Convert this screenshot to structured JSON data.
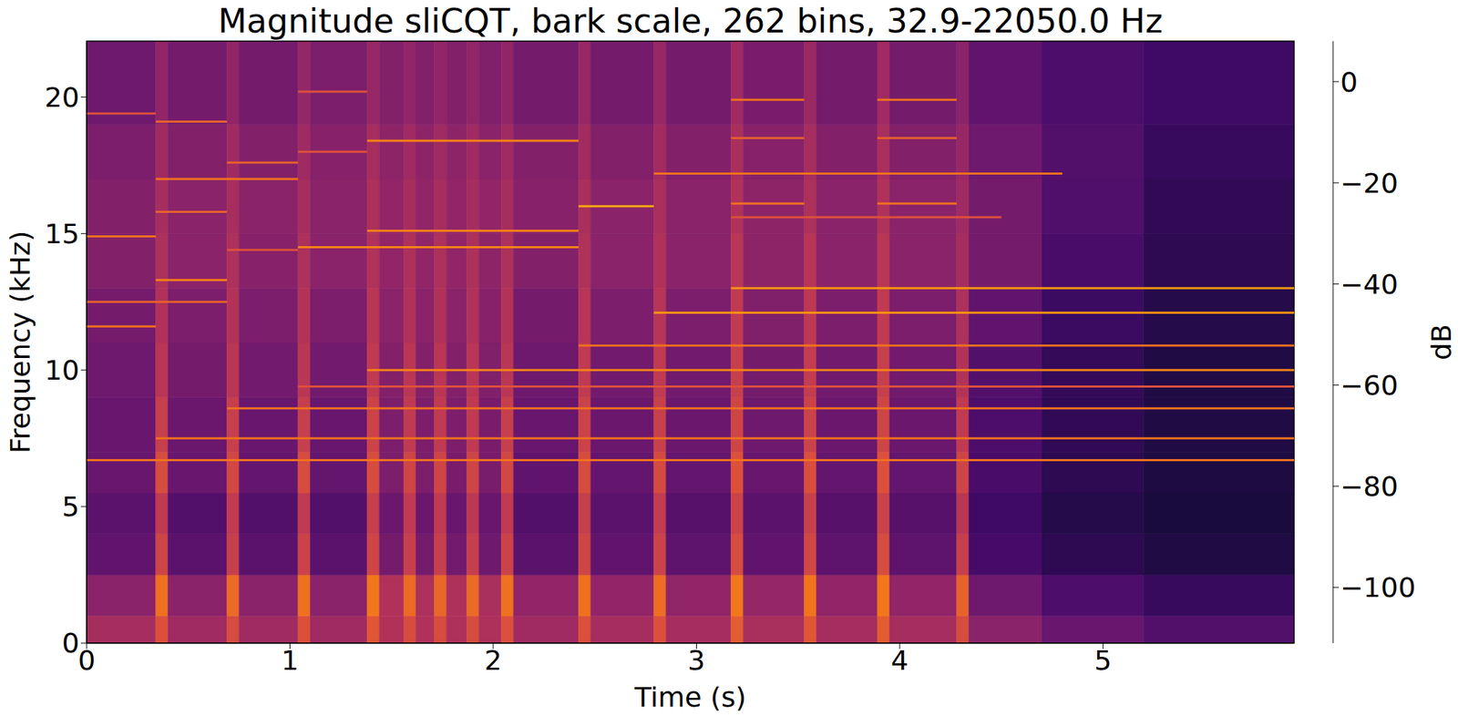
{
  "chart_data": {
    "type": "heatmap",
    "title": "Magnitude sliCQT, bark scale, 262 bins, 32.9-22050.0 Hz",
    "x_label": "Time (s)",
    "y_label": "Frequency (kHz)",
    "xlim": [
      0,
      5.94
    ],
    "ylim": [
      0,
      22.05
    ],
    "xticks": [
      0,
      1,
      2,
      3,
      4,
      5
    ],
    "yticks": [
      0,
      5,
      10,
      15,
      20
    ],
    "x_edges": [
      0,
      0.34,
      0.4,
      0.69,
      0.75,
      1.04,
      1.1,
      1.38,
      1.44,
      1.56,
      1.62,
      1.71,
      1.77,
      1.87,
      1.93,
      2.04,
      2.1,
      2.42,
      2.48,
      2.79,
      2.85,
      3.17,
      3.23,
      3.53,
      3.59,
      3.89,
      3.95,
      4.28,
      4.34,
      4.7,
      5.2,
      5.94
    ],
    "y_edges": [
      0,
      1,
      2.5,
      4,
      5.5,
      7,
      9,
      11,
      13,
      15,
      17,
      19,
      22.05
    ],
    "cells": [
      [
        -58,
        -66,
        -78,
        -80,
        -76,
        -76,
        -74,
        -72,
        -68,
        -68,
        -70,
        -74
      ],
      [
        -40,
        -30,
        -45,
        -50,
        -42,
        -48,
        -52,
        -55,
        -56,
        -58,
        -60,
        -64
      ],
      [
        -60,
        -66,
        -80,
        -82,
        -76,
        -75,
        -72,
        -70,
        -66,
        -66,
        -68,
        -72
      ],
      [
        -42,
        -32,
        -48,
        -50,
        -44,
        -48,
        -52,
        -54,
        -56,
        -58,
        -60,
        -64
      ],
      [
        -60,
        -66,
        -80,
        -82,
        -77,
        -76,
        -73,
        -70,
        -67,
        -66,
        -68,
        -72
      ],
      [
        -40,
        -30,
        -46,
        -50,
        -42,
        -48,
        -52,
        -54,
        -56,
        -58,
        -60,
        -63
      ],
      [
        -60,
        -66,
        -80,
        -82,
        -77,
        -76,
        -73,
        -70,
        -66,
        -66,
        -67,
        -70
      ],
      [
        -38,
        -28,
        -45,
        -48,
        -42,
        -46,
        -50,
        -52,
        -55,
        -56,
        -58,
        -62
      ],
      [
        -55,
        -55,
        -72,
        -75,
        -70,
        -70,
        -68,
        -66,
        -64,
        -64,
        -65,
        -68
      ],
      [
        -42,
        -32,
        -48,
        -50,
        -45,
        -50,
        -52,
        -55,
        -56,
        -58,
        -60,
        -64
      ],
      [
        -55,
        -56,
        -72,
        -75,
        -70,
        -70,
        -68,
        -66,
        -64,
        -64,
        -65,
        -68
      ],
      [
        -42,
        -33,
        -48,
        -50,
        -45,
        -50,
        -52,
        -55,
        -56,
        -58,
        -60,
        -64
      ],
      [
        -56,
        -56,
        -73,
        -76,
        -71,
        -70,
        -68,
        -66,
        -64,
        -64,
        -65,
        -68
      ],
      [
        -42,
        -32,
        -48,
        -51,
        -45,
        -50,
        -52,
        -55,
        -56,
        -58,
        -60,
        -64
      ],
      [
        -56,
        -57,
        -74,
        -76,
        -71,
        -71,
        -69,
        -67,
        -65,
        -64,
        -66,
        -69
      ],
      [
        -40,
        -30,
        -46,
        -50,
        -44,
        -48,
        -52,
        -54,
        -56,
        -58,
        -60,
        -64
      ],
      [
        -60,
        -64,
        -80,
        -82,
        -78,
        -76,
        -74,
        -72,
        -68,
        -67,
        -68,
        -72
      ],
      [
        -40,
        -30,
        -45,
        -48,
        -42,
        -46,
        -50,
        -53,
        -55,
        -57,
        -59,
        -62
      ],
      [
        -58,
        -64,
        -78,
        -80,
        -77,
        -75,
        -73,
        -70,
        -66,
        -66,
        -68,
        -72
      ],
      [
        -40,
        -31,
        -46,
        -49,
        -43,
        -47,
        -50,
        -53,
        -55,
        -57,
        -59,
        -62
      ],
      [
        -58,
        -64,
        -79,
        -81,
        -77,
        -75,
        -73,
        -70,
        -66,
        -66,
        -68,
        -72
      ],
      [
        -36,
        -28,
        -42,
        -46,
        -40,
        -45,
        -48,
        -50,
        -52,
        -55,
        -57,
        -60
      ],
      [
        -57,
        -63,
        -78,
        -80,
        -76,
        -74,
        -72,
        -69,
        -65,
        -65,
        -67,
        -71
      ],
      [
        -38,
        -29,
        -44,
        -47,
        -41,
        -46,
        -49,
        -51,
        -53,
        -56,
        -58,
        -61
      ],
      [
        -58,
        -64,
        -79,
        -81,
        -77,
        -75,
        -73,
        -70,
        -66,
        -66,
        -68,
        -72
      ],
      [
        -36,
        -28,
        -42,
        -46,
        -40,
        -45,
        -48,
        -50,
        -52,
        -55,
        -57,
        -60
      ],
      [
        -58,
        -64,
        -79,
        -81,
        -77,
        -75,
        -73,
        -70,
        -66,
        -66,
        -68,
        -72
      ],
      [
        -42,
        -34,
        -48,
        -52,
        -45,
        -50,
        -54,
        -56,
        -58,
        -60,
        -62,
        -66
      ],
      [
        -66,
        -74,
        -86,
        -88,
        -85,
        -84,
        -82,
        -78,
        -72,
        -72,
        -74,
        -78
      ],
      [
        -76,
        -84,
        -93,
        -95,
        -93,
        -92,
        -91,
        -89,
        -85,
        -83,
        -82,
        -84
      ],
      [
        -82,
        -90,
        -96,
        -98,
        -97,
        -96,
        -96,
        -95,
        -93,
        -92,
        -90,
        -88
      ]
    ],
    "partials": [
      {
        "freq": 6.7,
        "start": 0,
        "end": 5.94,
        "db": -30
      },
      {
        "freq": 7.5,
        "start": 0.34,
        "end": 5.94,
        "db": -30
      },
      {
        "freq": 8.6,
        "start": 0.69,
        "end": 5.94,
        "db": -30
      },
      {
        "freq": 9.4,
        "start": 1.04,
        "end": 5.94,
        "db": -40
      },
      {
        "freq": 10.0,
        "start": 1.38,
        "end": 5.94,
        "db": -25
      },
      {
        "freq": 10.9,
        "start": 2.42,
        "end": 5.94,
        "db": -30
      },
      {
        "freq": 12.1,
        "start": 2.79,
        "end": 5.94,
        "db": -20
      },
      {
        "freq": 13.0,
        "start": 3.17,
        "end": 5.94,
        "db": -20
      },
      {
        "freq": 11.6,
        "start": 0,
        "end": 0.34,
        "db": -30
      },
      {
        "freq": 12.5,
        "start": 0,
        "end": 0.69,
        "db": -35
      },
      {
        "freq": 13.3,
        "start": 0.34,
        "end": 0.69,
        "db": -25
      },
      {
        "freq": 14.9,
        "start": 0,
        "end": 0.34,
        "db": -30
      },
      {
        "freq": 19.4,
        "start": 0,
        "end": 0.34,
        "db": -40
      },
      {
        "freq": 15.8,
        "start": 0.34,
        "end": 0.69,
        "db": -35
      },
      {
        "freq": 17.0,
        "start": 0.34,
        "end": 1.04,
        "db": -30
      },
      {
        "freq": 19.1,
        "start": 0.34,
        "end": 0.69,
        "db": -35
      },
      {
        "freq": 17.6,
        "start": 0.69,
        "end": 1.04,
        "db": -35
      },
      {
        "freq": 14.4,
        "start": 0.69,
        "end": 1.04,
        "db": -40
      },
      {
        "freq": 14.5,
        "start": 1.04,
        "end": 2.42,
        "db": -25
      },
      {
        "freq": 15.1,
        "start": 1.38,
        "end": 2.42,
        "db": -25
      },
      {
        "freq": 18.4,
        "start": 1.38,
        "end": 2.42,
        "db": -25
      },
      {
        "freq": 20.2,
        "start": 1.04,
        "end": 1.38,
        "db": -40
      },
      {
        "freq": 18.0,
        "start": 1.04,
        "end": 1.38,
        "db": -40
      },
      {
        "freq": 16.0,
        "start": 2.42,
        "end": 2.79,
        "db": -15
      },
      {
        "freq": 15.6,
        "start": 3.17,
        "end": 4.5,
        "db": -40
      },
      {
        "freq": 17.2,
        "start": 2.79,
        "end": 4.8,
        "db": -30
      },
      {
        "freq": 16.1,
        "start": 3.17,
        "end": 3.53,
        "db": -30
      },
      {
        "freq": 18.5,
        "start": 3.17,
        "end": 3.53,
        "db": -35
      },
      {
        "freq": 19.9,
        "start": 3.17,
        "end": 3.53,
        "db": -30
      },
      {
        "freq": 19.9,
        "start": 3.89,
        "end": 4.28,
        "db": -30
      },
      {
        "freq": 16.1,
        "start": 3.89,
        "end": 4.28,
        "db": -30
      },
      {
        "freq": 18.5,
        "start": 3.89,
        "end": 4.28,
        "db": -35
      }
    ],
    "colorbar": {
      "label": "dB",
      "range": [
        -111,
        8
      ],
      "ticks": [
        0,
        {
          "value": -20,
          "label": "−20"
        },
        {
          "value": -40,
          "label": "−40"
        },
        {
          "value": -60,
          "label": "−60"
        },
        {
          "value": -80,
          "label": "−80"
        },
        {
          "value": -100,
          "label": "−100"
        }
      ]
    }
  }
}
